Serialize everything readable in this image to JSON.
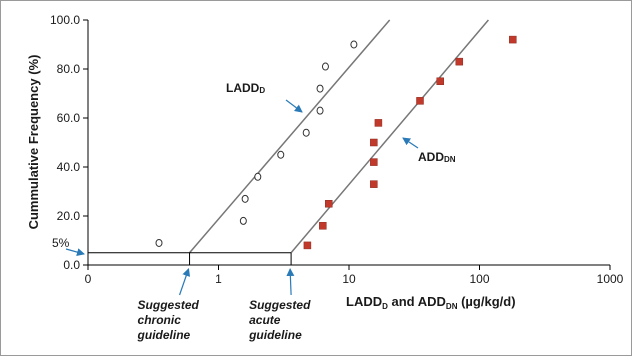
{
  "chart_data": {
    "type": "scatter",
    "title": "",
    "ylabel": "Cummulative Frequency (%)",
    "xlabel": {
      "main": "LADD",
      "sub1": "D",
      "mid": " and ADD",
      "sub2": "DN",
      "unit": " (µg/kg/d)"
    },
    "x_scale": "log",
    "x_ticks": [
      {
        "value": 0.1,
        "label": "0"
      },
      {
        "value": 1,
        "label": "1"
      },
      {
        "value": 10,
        "label": "10"
      },
      {
        "value": 100,
        "label": "100"
      },
      {
        "value": 1000,
        "label": "1000"
      }
    ],
    "y_ticks": [
      {
        "value": 0,
        "label": "0.0"
      },
      {
        "value": 20,
        "label": "20.0"
      },
      {
        "value": 40,
        "label": "40.0"
      },
      {
        "value": 60,
        "label": "60.0"
      },
      {
        "value": 80,
        "label": "80.0"
      },
      {
        "value": 100,
        "label": "100.0"
      }
    ],
    "y_marker": {
      "value": 5,
      "label": "5%"
    },
    "ylim": [
      0,
      100
    ],
    "xlim": [
      0.1,
      1000
    ],
    "series": [
      {
        "name": {
          "main": "LADD",
          "sub": "D"
        },
        "marker": "open-circle",
        "color": "#333333",
        "points": [
          {
            "x": 0.35,
            "y": 9
          },
          {
            "x": 1.55,
            "y": 18
          },
          {
            "x": 1.6,
            "y": 27
          },
          {
            "x": 2.0,
            "y": 36
          },
          {
            "x": 3.0,
            "y": 45
          },
          {
            "x": 4.7,
            "y": 54
          },
          {
            "x": 6.0,
            "y": 63
          },
          {
            "x": 6.0,
            "y": 72
          },
          {
            "x": 6.6,
            "y": 81
          },
          {
            "x": 10.9,
            "y": 90
          }
        ],
        "fit_line": {
          "x": [
            0.6,
            20.5
          ],
          "y": [
            5,
            100
          ],
          "color": "#777777"
        }
      },
      {
        "name": {
          "main": "ADD",
          "sub": "DN"
        },
        "marker": "filled-square",
        "color": "#c0392b",
        "points": [
          {
            "x": 4.8,
            "y": 8
          },
          {
            "x": 6.3,
            "y": 16
          },
          {
            "x": 7.0,
            "y": 25
          },
          {
            "x": 15.5,
            "y": 33
          },
          {
            "x": 15.5,
            "y": 42
          },
          {
            "x": 15.5,
            "y": 50
          },
          {
            "x": 16.8,
            "y": 58
          },
          {
            "x": 35,
            "y": 67
          },
          {
            "x": 50,
            "y": 75
          },
          {
            "x": 70,
            "y": 83
          },
          {
            "x": 180,
            "y": 92
          }
        ],
        "fit_line": {
          "x": [
            3.6,
            117
          ],
          "y": [
            5,
            100
          ],
          "color": "#777777"
        }
      }
    ],
    "guidelines": [
      {
        "name": "chronic",
        "x": 0.6,
        "lines": [
          "Suggested",
          "chronic",
          "guideline"
        ]
      },
      {
        "name": "acute",
        "x": 3.6,
        "lines": [
          "Suggested",
          "acute",
          "guideline"
        ]
      }
    ],
    "arrow_color": "#2a7ab8",
    "grid": false,
    "legend": "inline labels"
  }
}
